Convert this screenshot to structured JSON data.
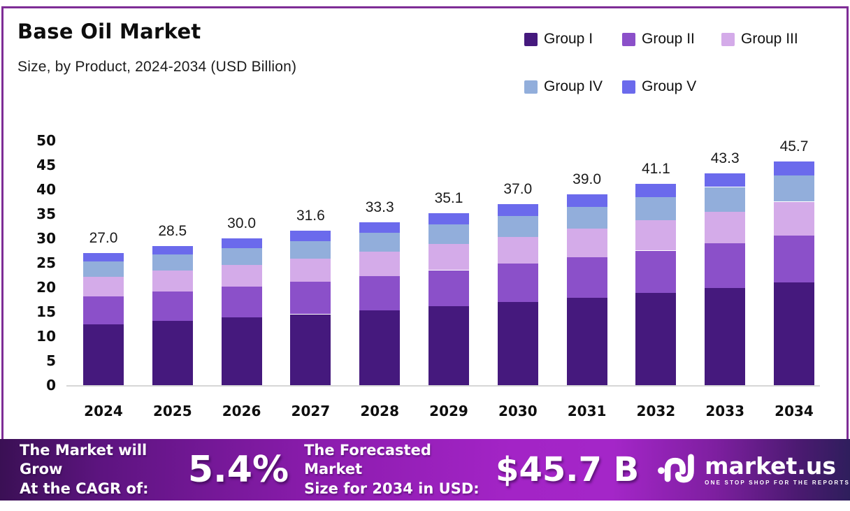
{
  "header": {
    "title": "Base Oil Market",
    "subtitle": "Size, by Product, 2024-2034 (USD Billion)"
  },
  "legend": [
    {
      "label": "Group I",
      "color": "#45197d"
    },
    {
      "label": "Group II",
      "color": "#8b50c9"
    },
    {
      "label": "Group III",
      "color": "#d4abe9"
    },
    {
      "label": "Group IV",
      "color": "#92aedb"
    },
    {
      "label": "Group V",
      "color": "#6b6aec"
    }
  ],
  "chart_data": {
    "type": "bar",
    "stacked": true,
    "title": "Base Oil Market",
    "subtitle": "Size, by Product, 2024-2034 (USD Billion)",
    "unit": "USD Billion",
    "grid": false,
    "legend_position": "top-right",
    "categories": [
      "2024",
      "2025",
      "2026",
      "2027",
      "2028",
      "2029",
      "2030",
      "2031",
      "2032",
      "2033",
      "2034"
    ],
    "totals": [
      27.0,
      28.5,
      30.0,
      31.6,
      33.3,
      35.1,
      37.0,
      39.0,
      41.1,
      43.3,
      45.7
    ],
    "series": [
      {
        "name": "Group I",
        "color": "#45197d",
        "values": [
          12.4,
          13.1,
          13.8,
          14.5,
          15.3,
          16.1,
          17.0,
          17.9,
          18.9,
          19.9,
          21.0
        ]
      },
      {
        "name": "Group II",
        "color": "#8b50c9",
        "values": [
          5.7,
          6.0,
          6.3,
          6.6,
          7.0,
          7.4,
          7.8,
          8.2,
          8.6,
          9.1,
          9.6
        ]
      },
      {
        "name": "Group III",
        "color": "#d4abe9",
        "values": [
          4.1,
          4.3,
          4.5,
          4.7,
          5.0,
          5.3,
          5.5,
          5.9,
          6.2,
          6.5,
          6.9
        ]
      },
      {
        "name": "Group IV",
        "color": "#92aedb",
        "values": [
          3.1,
          3.3,
          3.4,
          3.6,
          3.8,
          4.0,
          4.3,
          4.5,
          4.7,
          5.0,
          5.3
        ]
      },
      {
        "name": "Group V",
        "color": "#6b6aec",
        "values": [
          1.7,
          1.8,
          2.0,
          2.2,
          2.2,
          2.3,
          2.4,
          2.5,
          2.7,
          2.8,
          2.9
        ]
      }
    ],
    "ylim": [
      0,
      50
    ],
    "yticks": [
      0,
      5,
      10,
      15,
      20,
      25,
      30,
      35,
      40,
      45,
      50
    ],
    "xlabel": "",
    "ylabel": ""
  },
  "footer": {
    "cagr_line1": "The Market will Grow",
    "cagr_line2": "At the CAGR of:",
    "cagr_value": "5.4%",
    "forecast_line1": "The Forecasted Market",
    "forecast_line2": "Size for 2034 in USD:",
    "forecast_value": "$45.7 B",
    "brand_name": "market.us",
    "brand_tagline": "ONE STOP SHOP FOR THE REPORTS"
  },
  "colors": {
    "border": "#7e2d96",
    "banner_left": "#3a1054",
    "banner_mid": "#a426c8",
    "banner_right": "#2e1e5c",
    "baseline": "#d6d6d6"
  }
}
